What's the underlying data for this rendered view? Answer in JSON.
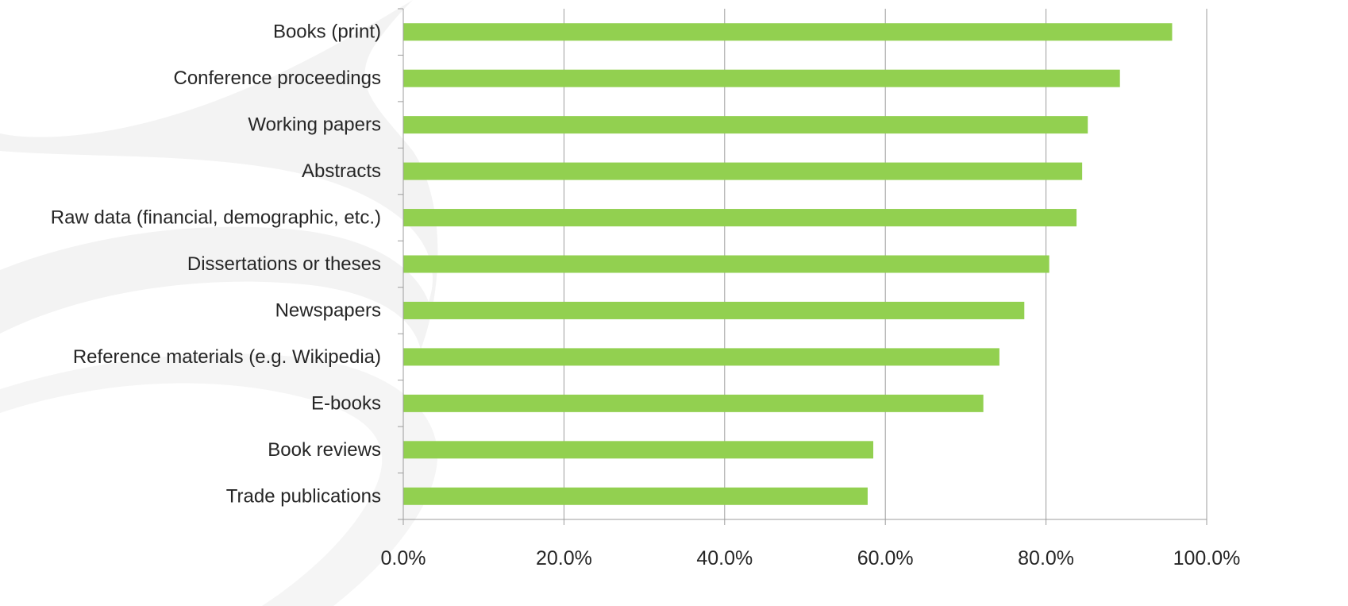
{
  "chart_data": {
    "type": "bar",
    "orientation": "horizontal",
    "categories": [
      "Books (print)",
      "Conference proceedings",
      "Working papers",
      "Abstracts",
      "Raw data (financial, demographic, etc.)",
      "Dissertations or theses",
      "Newspapers",
      "Reference materials (e.g. Wikipedia)",
      "E-books",
      "Book reviews",
      "Trade publications"
    ],
    "values": [
      95.7,
      89.2,
      85.2,
      84.5,
      83.8,
      80.4,
      77.3,
      74.2,
      72.2,
      58.5,
      57.8
    ],
    "xlim": [
      0,
      100
    ],
    "x_ticks": [
      "0.0%",
      "20.0%",
      "40.0%",
      "60.0%",
      "80.0%",
      "100.0%"
    ],
    "x_tick_values": [
      0,
      20,
      40,
      60,
      80,
      100
    ],
    "title": "",
    "xlabel": "",
    "ylabel": "",
    "grid": "vertical gridlines",
    "legend": "none",
    "colors": {
      "bar": "#92d050",
      "grid": "#9c9c9c",
      "axis": "#9c9c9c",
      "text": "#262626",
      "watermark": "#f2f2f2"
    }
  }
}
